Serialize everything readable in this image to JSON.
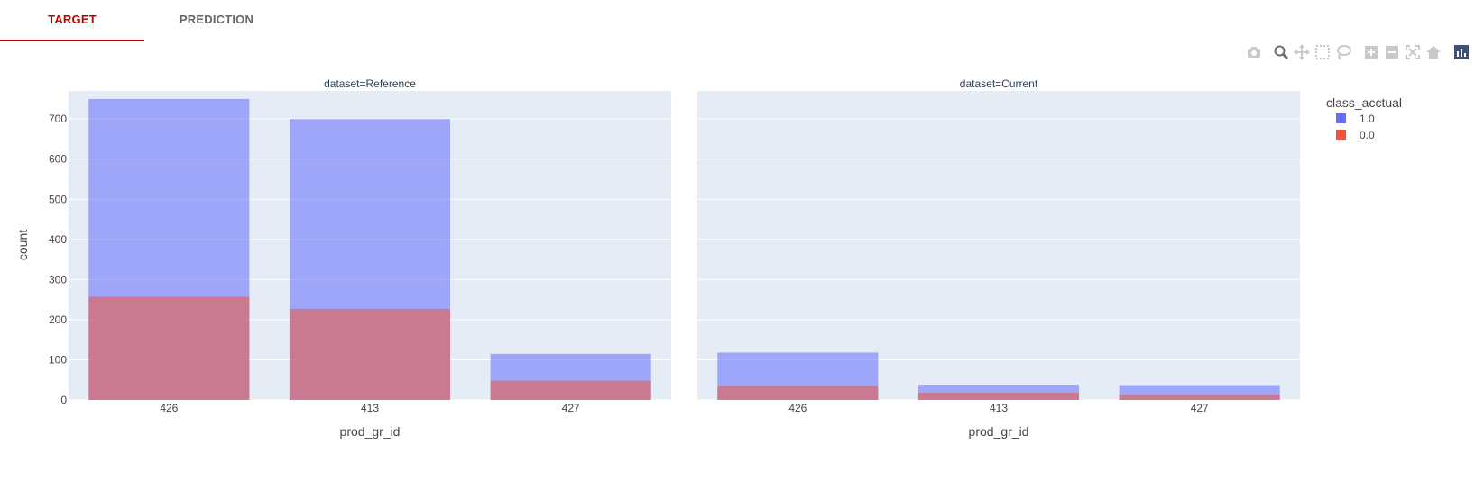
{
  "tabs": [
    {
      "label": "TARGET",
      "active": true
    },
    {
      "label": "PREDICTION",
      "active": false
    }
  ],
  "modebar": [
    "camera-icon",
    "zoom-icon",
    "pan-icon",
    "box-select-icon",
    "lasso-icon",
    "zoom-in-icon",
    "zoom-out-icon",
    "autoscale-icon",
    "reset-axes-icon",
    "plotly-logo-icon"
  ],
  "chart_data": {
    "type": "bar",
    "barmode": "overlay",
    "ylabel": "count",
    "xlabel": "prod_gr_id",
    "ylim": [
      0,
      770
    ],
    "yticks": [
      0,
      100,
      200,
      300,
      400,
      500,
      600,
      700
    ],
    "grid": true,
    "legend": {
      "title": "class_acctual",
      "placement": "top-right"
    },
    "series_colors": {
      "1.0": "#636efa",
      "0.0": "#ef553b"
    },
    "panels": [
      {
        "title": "dataset=Reference",
        "categories": [
          "426",
          "413",
          "427"
        ],
        "series": [
          {
            "name": "1.0",
            "values": [
              750,
              700,
              115
            ]
          },
          {
            "name": "0.0",
            "values": [
              257,
              227,
              48
            ]
          }
        ]
      },
      {
        "title": "dataset=Current",
        "categories": [
          "426",
          "413",
          "427"
        ],
        "series": [
          {
            "name": "1.0",
            "values": [
              118,
              38,
              37
            ]
          },
          {
            "name": "0.0",
            "values": [
              35,
              18,
              13
            ]
          }
        ]
      }
    ]
  }
}
